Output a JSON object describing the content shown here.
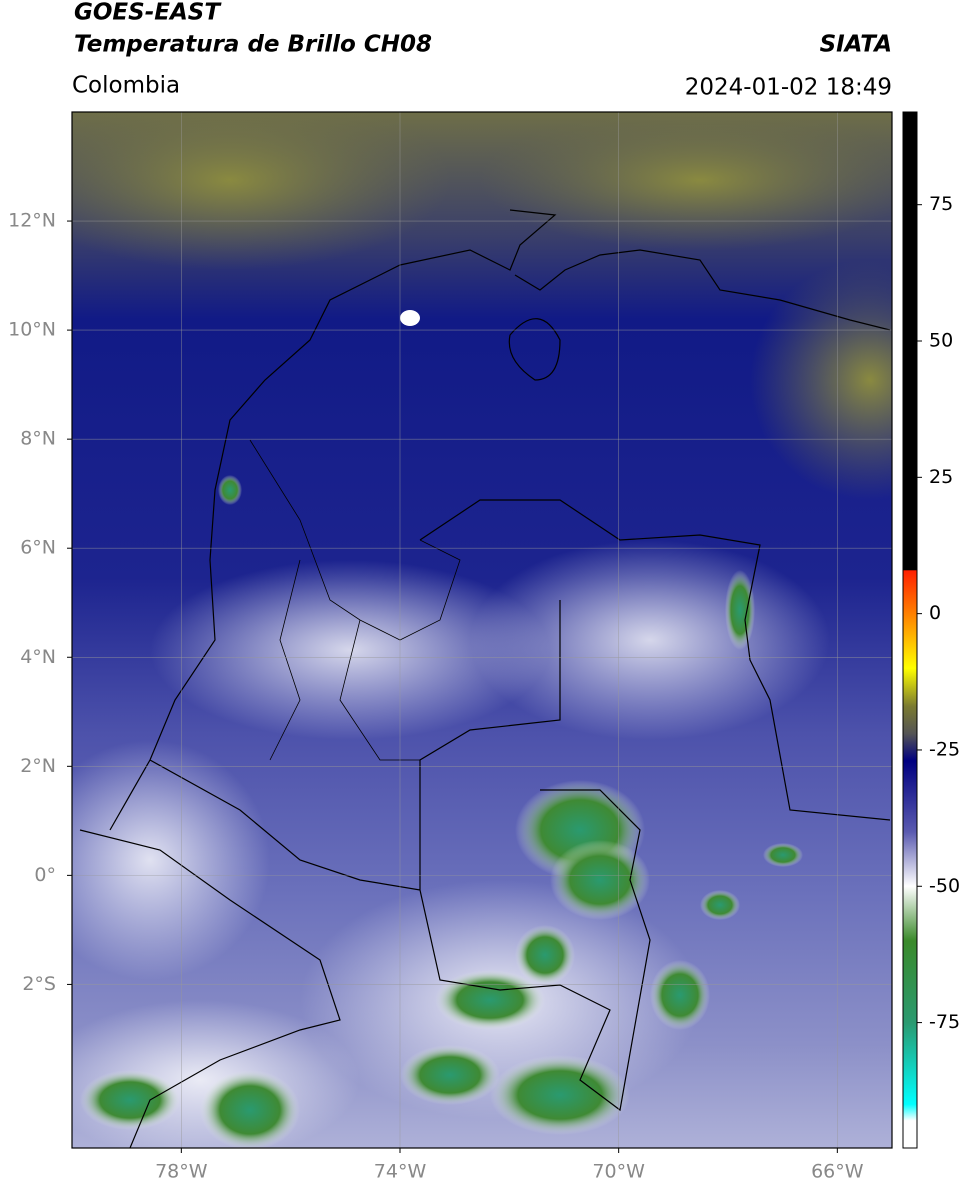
{
  "chart_data": {
    "type": "map",
    "title": "GOES-EAST",
    "subtitle": "Temperatura de Brillo CH08",
    "source": "SIATA",
    "region": "Colombia",
    "datetime": "2024-01-02 18:49",
    "xlim": [
      -80,
      -65
    ],
    "ylim": [
      -5,
      14
    ],
    "xticks": [
      {
        "value": -78,
        "label": "78°W"
      },
      {
        "value": -74,
        "label": "74°W"
      },
      {
        "value": -70,
        "label": "70°W"
      },
      {
        "value": -66,
        "label": "66°W"
      }
    ],
    "yticks": [
      {
        "value": -2,
        "label": "2°S"
      },
      {
        "value": 0,
        "label": "0°"
      },
      {
        "value": 2,
        "label": "2°N"
      },
      {
        "value": 4,
        "label": "4°N"
      },
      {
        "value": 6,
        "label": "6°N"
      },
      {
        "value": 8,
        "label": "8°N"
      },
      {
        "value": 10,
        "label": "10°N"
      },
      {
        "value": 12,
        "label": "12°N"
      }
    ],
    "grid": true,
    "colorbar": {
      "lim": [
        -98,
        92
      ],
      "ticks": [
        75,
        50,
        25,
        0,
        -25,
        -50,
        -75
      ],
      "colormap": [
        {
          "value": 92,
          "color": "#000000"
        },
        {
          "value": 8,
          "color": "#000000"
        },
        {
          "value": 7.9,
          "color": "#ff2000"
        },
        {
          "value": 0,
          "color": "#ff8000"
        },
        {
          "value": -10,
          "color": "#ffff00"
        },
        {
          "value": -17,
          "color": "#7a7a30"
        },
        {
          "value": -22,
          "color": "#555555"
        },
        {
          "value": -27,
          "color": "#000080"
        },
        {
          "value": -40,
          "color": "#5a5ab0"
        },
        {
          "value": -50,
          "color": "#ffffff"
        },
        {
          "value": -60,
          "color": "#3a8a2a"
        },
        {
          "value": -75,
          "color": "#2a9a70"
        },
        {
          "value": -90,
          "color": "#00ffff"
        },
        {
          "value": -93,
          "color": "#ffffff"
        },
        {
          "value": -98,
          "color": "#ffffff"
        }
      ]
    }
  }
}
